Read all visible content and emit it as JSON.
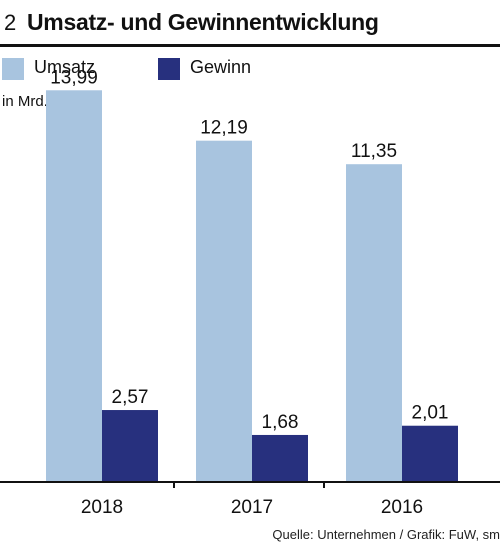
{
  "header": {
    "number": "2",
    "title": "Umsatz- und Gewinnentwicklung"
  },
  "unit_label": "in Mrd. $",
  "source": "Quelle: Unternehmen / Grafik: FuW, sm",
  "colors": {
    "umsatz": "#a8c4df",
    "gewinn": "#27307e",
    "text": "#111111"
  },
  "legend": [
    {
      "name": "Umsatz",
      "color": "#a8c4df"
    },
    {
      "name": "Gewinn",
      "color": "#27307e"
    }
  ],
  "chart_data": {
    "type": "bar",
    "categories": [
      "2018",
      "2017",
      "2016"
    ],
    "series": [
      {
        "name": "Umsatz",
        "values": [
          13.99,
          12.19,
          11.35
        ],
        "labels": [
          "13,99",
          "12,19",
          "11,35"
        ]
      },
      {
        "name": "Gewinn",
        "values": [
          2.57,
          1.68,
          2.01
        ],
        "labels": [
          "2,57",
          "1,68",
          "2,01"
        ]
      }
    ],
    "ylabel": "in Mrd. $",
    "ylim": [
      0,
      15
    ],
    "grid": false,
    "legend_position": "top-left"
  }
}
